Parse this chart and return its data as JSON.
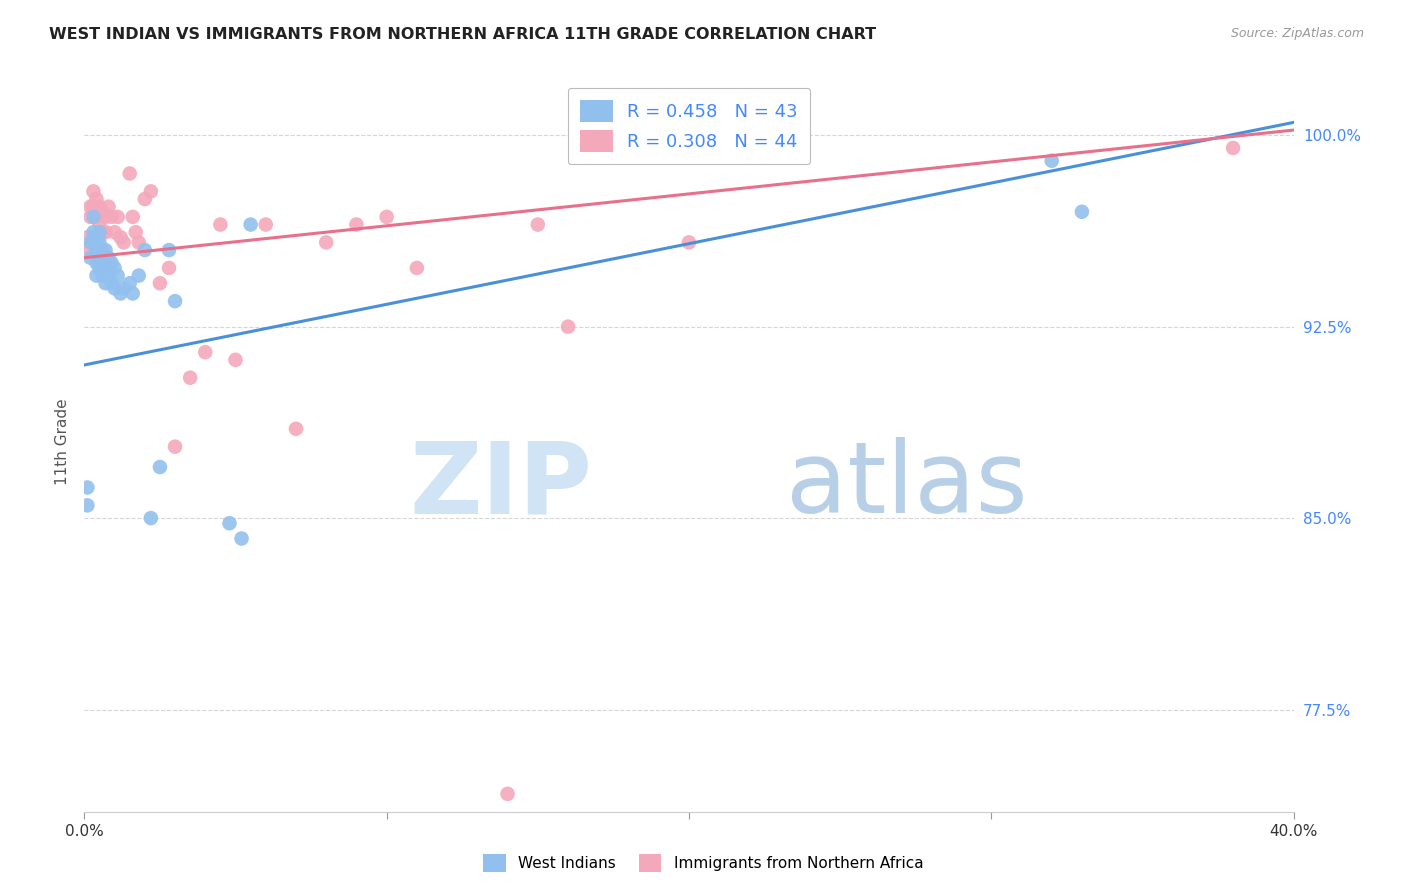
{
  "title": "WEST INDIAN VS IMMIGRANTS FROM NORTHERN AFRICA 11TH GRADE CORRELATION CHART",
  "source": "Source: ZipAtlas.com",
  "ylabel": "11th Grade",
  "ytick_labels": [
    "100.0%",
    "92.5%",
    "85.0%",
    "77.5%"
  ],
  "ytick_values": [
    1.0,
    0.925,
    0.85,
    0.775
  ],
  "xmin": 0.0,
  "xmax": 0.4,
  "ymin": 0.735,
  "ymax": 1.025,
  "legend_r1": "R = 0.458",
  "legend_n1": "N = 43",
  "legend_r2": "R = 0.308",
  "legend_n2": "N = 44",
  "color_blue": "#92C0EE",
  "color_pink": "#F4A8BB",
  "color_blue_line": "#4A90D9",
  "color_pink_line": "#E8708A",
  "color_axis": "#4488FF",
  "blue_trend_x0": 0.0,
  "blue_trend_y0": 0.91,
  "blue_trend_x1": 0.4,
  "blue_trend_y1": 1.005,
  "pink_trend_x0": 0.0,
  "pink_trend_y0": 0.952,
  "pink_trend_x1": 0.4,
  "pink_trend_y1": 1.002,
  "blue_scatter_x": [
    0.001,
    0.001,
    0.002,
    0.002,
    0.003,
    0.003,
    0.003,
    0.004,
    0.004,
    0.004,
    0.004,
    0.005,
    0.005,
    0.005,
    0.005,
    0.006,
    0.006,
    0.006,
    0.007,
    0.007,
    0.007,
    0.008,
    0.008,
    0.009,
    0.009,
    0.01,
    0.01,
    0.011,
    0.012,
    0.013,
    0.015,
    0.016,
    0.018,
    0.02,
    0.022,
    0.025,
    0.028,
    0.03,
    0.048,
    0.052,
    0.055,
    0.32,
    0.33
  ],
  "blue_scatter_y": [
    0.862,
    0.855,
    0.958,
    0.952,
    0.968,
    0.962,
    0.96,
    0.958,
    0.955,
    0.95,
    0.945,
    0.962,
    0.958,
    0.952,
    0.948,
    0.955,
    0.95,
    0.945,
    0.955,
    0.948,
    0.942,
    0.952,
    0.945,
    0.95,
    0.942,
    0.948,
    0.94,
    0.945,
    0.938,
    0.94,
    0.942,
    0.938,
    0.945,
    0.955,
    0.85,
    0.87,
    0.955,
    0.935,
    0.848,
    0.842,
    0.965,
    0.99,
    0.97
  ],
  "pink_scatter_x": [
    0.001,
    0.001,
    0.002,
    0.002,
    0.003,
    0.003,
    0.004,
    0.004,
    0.005,
    0.005,
    0.006,
    0.006,
    0.007,
    0.007,
    0.008,
    0.009,
    0.01,
    0.011,
    0.012,
    0.013,
    0.015,
    0.016,
    0.017,
    0.018,
    0.02,
    0.022,
    0.025,
    0.028,
    0.03,
    0.035,
    0.04,
    0.045,
    0.05,
    0.06,
    0.07,
    0.08,
    0.09,
    0.1,
    0.11,
    0.14,
    0.15,
    0.16,
    0.2,
    0.38
  ],
  "pink_scatter_y": [
    0.96,
    0.955,
    0.972,
    0.968,
    0.978,
    0.972,
    0.975,
    0.968,
    0.972,
    0.965,
    0.97,
    0.962,
    0.968,
    0.962,
    0.972,
    0.968,
    0.962,
    0.968,
    0.96,
    0.958,
    0.985,
    0.968,
    0.962,
    0.958,
    0.975,
    0.978,
    0.942,
    0.948,
    0.878,
    0.905,
    0.915,
    0.965,
    0.912,
    0.965,
    0.885,
    0.958,
    0.965,
    0.968,
    0.948,
    0.742,
    0.965,
    0.925,
    0.958,
    0.995
  ]
}
